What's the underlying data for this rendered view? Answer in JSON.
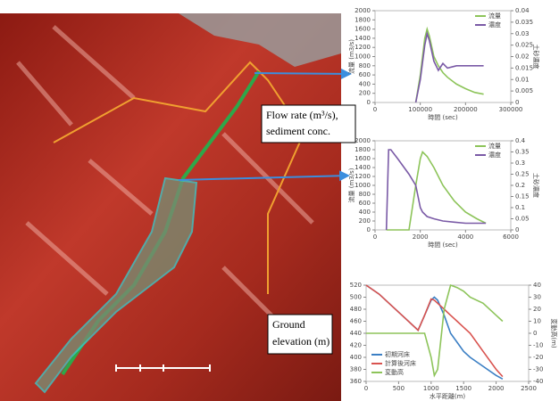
{
  "annotations": [
    [
      "Flow rate (m³/s),",
      "sediment conc."
    ],
    [
      "Ground",
      "elevation (m)"
    ]
  ],
  "chart_data": [
    {
      "type": "line",
      "x_label": "時間 (sec)",
      "y_label": "流量 (m3/s)",
      "y2_label": "土砂濃度",
      "x": [
        0,
        50000,
        90000,
        100000,
        110000,
        115000,
        120000,
        130000,
        140000,
        150000,
        160000,
        180000,
        200000,
        220000,
        240000
      ],
      "xlim": [
        0,
        300000
      ],
      "xticks": [
        0,
        100000,
        200000,
        300000
      ],
      "ylim": [
        0,
        2000
      ],
      "yticks": [
        0,
        200,
        400,
        600,
        800,
        1000,
        1200,
        1400,
        1600,
        1800,
        2000
      ],
      "y2lim": [
        0,
        0.04
      ],
      "y2ticks": [
        0,
        0.005,
        0.01,
        0.015,
        0.02,
        0.025,
        0.03,
        0.035,
        0.04
      ],
      "legend": "upper right",
      "grid": false,
      "series": [
        {
          "name": "流量",
          "color": "#8dc45a",
          "values": [
            null,
            null,
            0,
            600,
            1400,
            1600,
            1450,
            1000,
            800,
            650,
            550,
            400,
            300,
            220,
            180
          ]
        },
        {
          "name": "濃度",
          "color": "#7a5aa6",
          "axis": "y2",
          "values": [
            null,
            null,
            0,
            0.01,
            0.025,
            0.03,
            0.027,
            0.018,
            0.014,
            0.017,
            0.015,
            0.016,
            0.016,
            0.016,
            0.016
          ]
        }
      ]
    },
    {
      "type": "line",
      "x_label": "時間 (sec)",
      "y_label": "流量 (m3/s)",
      "y2_label": "土砂濃度",
      "x": [
        500,
        600,
        700,
        1000,
        1500,
        1800,
        2000,
        2100,
        2300,
        2600,
        3000,
        3500,
        4000,
        4500,
        4900
      ],
      "xlim": [
        0,
        6000
      ],
      "xticks": [
        0,
        2000,
        4000,
        6000
      ],
      "ylim": [
        0,
        2000
      ],
      "yticks": [
        0,
        200,
        400,
        600,
        800,
        1000,
        1200,
        1400,
        1600,
        1800,
        2000
      ],
      "y2lim": [
        0,
        0.4
      ],
      "y2ticks": [
        0,
        0.05,
        0.1,
        0.15,
        0.2,
        0.25,
        0.3,
        0.35,
        0.4
      ],
      "legend": "upper right",
      "grid": false,
      "series": [
        {
          "name": "流量",
          "color": "#8dc45a",
          "values": [
            0,
            0,
            0,
            0,
            0,
            1000,
            1600,
            1750,
            1650,
            1400,
            1000,
            650,
            400,
            250,
            150
          ]
        },
        {
          "name": "濃度",
          "color": "#7a5aa6",
          "axis": "y2",
          "values": [
            0,
            0.36,
            0.36,
            0.32,
            0.25,
            0.2,
            0.1,
            0.08,
            0.06,
            0.05,
            0.04,
            0.035,
            0.03,
            0.03,
            0.03
          ]
        }
      ]
    },
    {
      "type": "line",
      "x_label": "水平距離(m)",
      "y2_label": "変動高(m)",
      "x": [
        0,
        200,
        400,
        600,
        800,
        900,
        1000,
        1050,
        1100,
        1200,
        1300,
        1400,
        1500,
        1600,
        1800,
        2000,
        2100
      ],
      "xlim": [
        0,
        2500
      ],
      "xticks": [
        0,
        500,
        1000,
        1500,
        2000,
        2500
      ],
      "ylim": [
        360,
        520
      ],
      "yticks": [
        360,
        380,
        400,
        420,
        440,
        460,
        480,
        500,
        520
      ],
      "y2lim": [
        -40,
        40
      ],
      "y2ticks": [
        -40,
        -30,
        -20,
        -10,
        0,
        10,
        20,
        30,
        40
      ],
      "legend": "lower left",
      "grid": false,
      "series": [
        {
          "name": "初期河床",
          "color": "#3b7fc4",
          "values": [
            520,
            505,
            485,
            465,
            445,
            470,
            495,
            500,
            495,
            470,
            440,
            425,
            410,
            400,
            385,
            370,
            364
          ]
        },
        {
          "name": "計算後河床",
          "color": "#d9534f",
          "values": [
            520,
            505,
            485,
            465,
            445,
            470,
            497,
            495,
            490,
            480,
            470,
            460,
            450,
            440,
            410,
            380,
            368
          ]
        },
        {
          "name": "変動高",
          "color": "#8dc45a",
          "axis": "y2",
          "values": [
            0,
            0,
            0,
            0,
            0,
            0,
            -20,
            -35,
            -30,
            20,
            40,
            38,
            35,
            30,
            25,
            15,
            10
          ]
        }
      ]
    }
  ]
}
